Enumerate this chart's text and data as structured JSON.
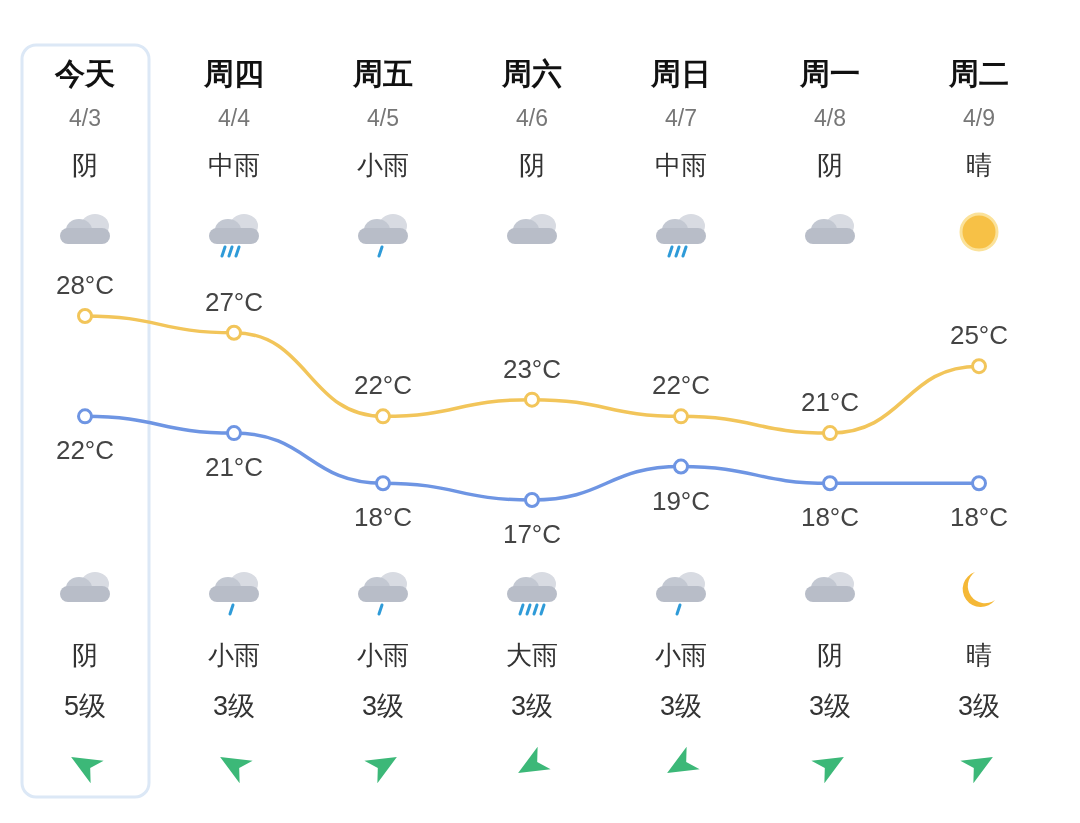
{
  "chart_data": {
    "type": "line",
    "categories": [
      "今天",
      "周四",
      "周五",
      "周六",
      "周日",
      "周一",
      "周二"
    ],
    "series": [
      {
        "color": "#f2c55a",
        "values": [
          28,
          27,
          22,
          23,
          22,
          21,
          25
        ],
        "value_labels": [
          "28°C",
          "27°C",
          "22°C",
          "23°C",
          "22°C",
          "21°C",
          "25°C"
        ]
      },
      {
        "color": "#6e95e3",
        "values": [
          22,
          21,
          18,
          17,
          19,
          18,
          18
        ],
        "value_labels": [
          "22°C",
          "21°C",
          "18°C",
          "17°C",
          "19°C",
          "18°C",
          "18°C"
        ]
      }
    ],
    "marker": "circle",
    "annotations": [
      "4/3",
      "4/4",
      "4/5",
      "4/6",
      "4/7",
      "4/8",
      "4/9",
      "阴",
      "中雨",
      "小雨",
      "阴",
      "中雨",
      "阴",
      "晴",
      "阴",
      "小雨",
      "小雨",
      "大雨",
      "小雨",
      "阴",
      "晴",
      "5级",
      "3级",
      "3级",
      "3级",
      "3级",
      "3级",
      "3级"
    ]
  }
}
